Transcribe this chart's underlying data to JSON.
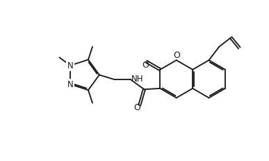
{
  "bg_color": "#ffffff",
  "line_color": "#1a1a1a",
  "line_width": 1.35,
  "font_size": 8.5,
  "fig_width": 3.87,
  "fig_height": 2.32,
  "dpi": 100,
  "xlim": [
    -1.0,
    10.5
  ],
  "ylim": [
    -0.5,
    6.5
  ]
}
